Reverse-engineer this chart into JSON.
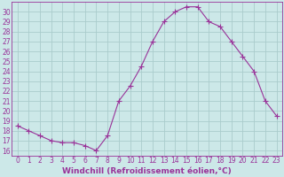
{
  "x": [
    0,
    1,
    2,
    3,
    4,
    5,
    6,
    7,
    8,
    9,
    10,
    11,
    12,
    13,
    14,
    15,
    16,
    17,
    18,
    19,
    20,
    21,
    22,
    23
  ],
  "y": [
    18.5,
    18.0,
    17.5,
    17.0,
    16.8,
    16.8,
    16.5,
    16.0,
    17.5,
    21.0,
    22.5,
    24.5,
    27.0,
    29.0,
    30.0,
    30.5,
    30.5,
    29.0,
    28.5,
    27.0,
    25.5,
    24.0,
    21.0,
    19.5
  ],
  "line_color": "#993399",
  "marker": "+",
  "marker_size": 4,
  "xlabel": "Windchill (Refroidissement éolien,°C)",
  "ylabel_ticks": [
    16,
    17,
    18,
    19,
    20,
    21,
    22,
    23,
    24,
    25,
    26,
    27,
    28,
    29,
    30
  ],
  "ylim": [
    15.5,
    31.0
  ],
  "xlim": [
    -0.5,
    23.5
  ],
  "bg_color": "#cce8e8",
  "grid_color": "#aacccc",
  "xlabel_fontsize": 6.5,
  "tick_fontsize": 5.5,
  "linewidth": 0.8
}
